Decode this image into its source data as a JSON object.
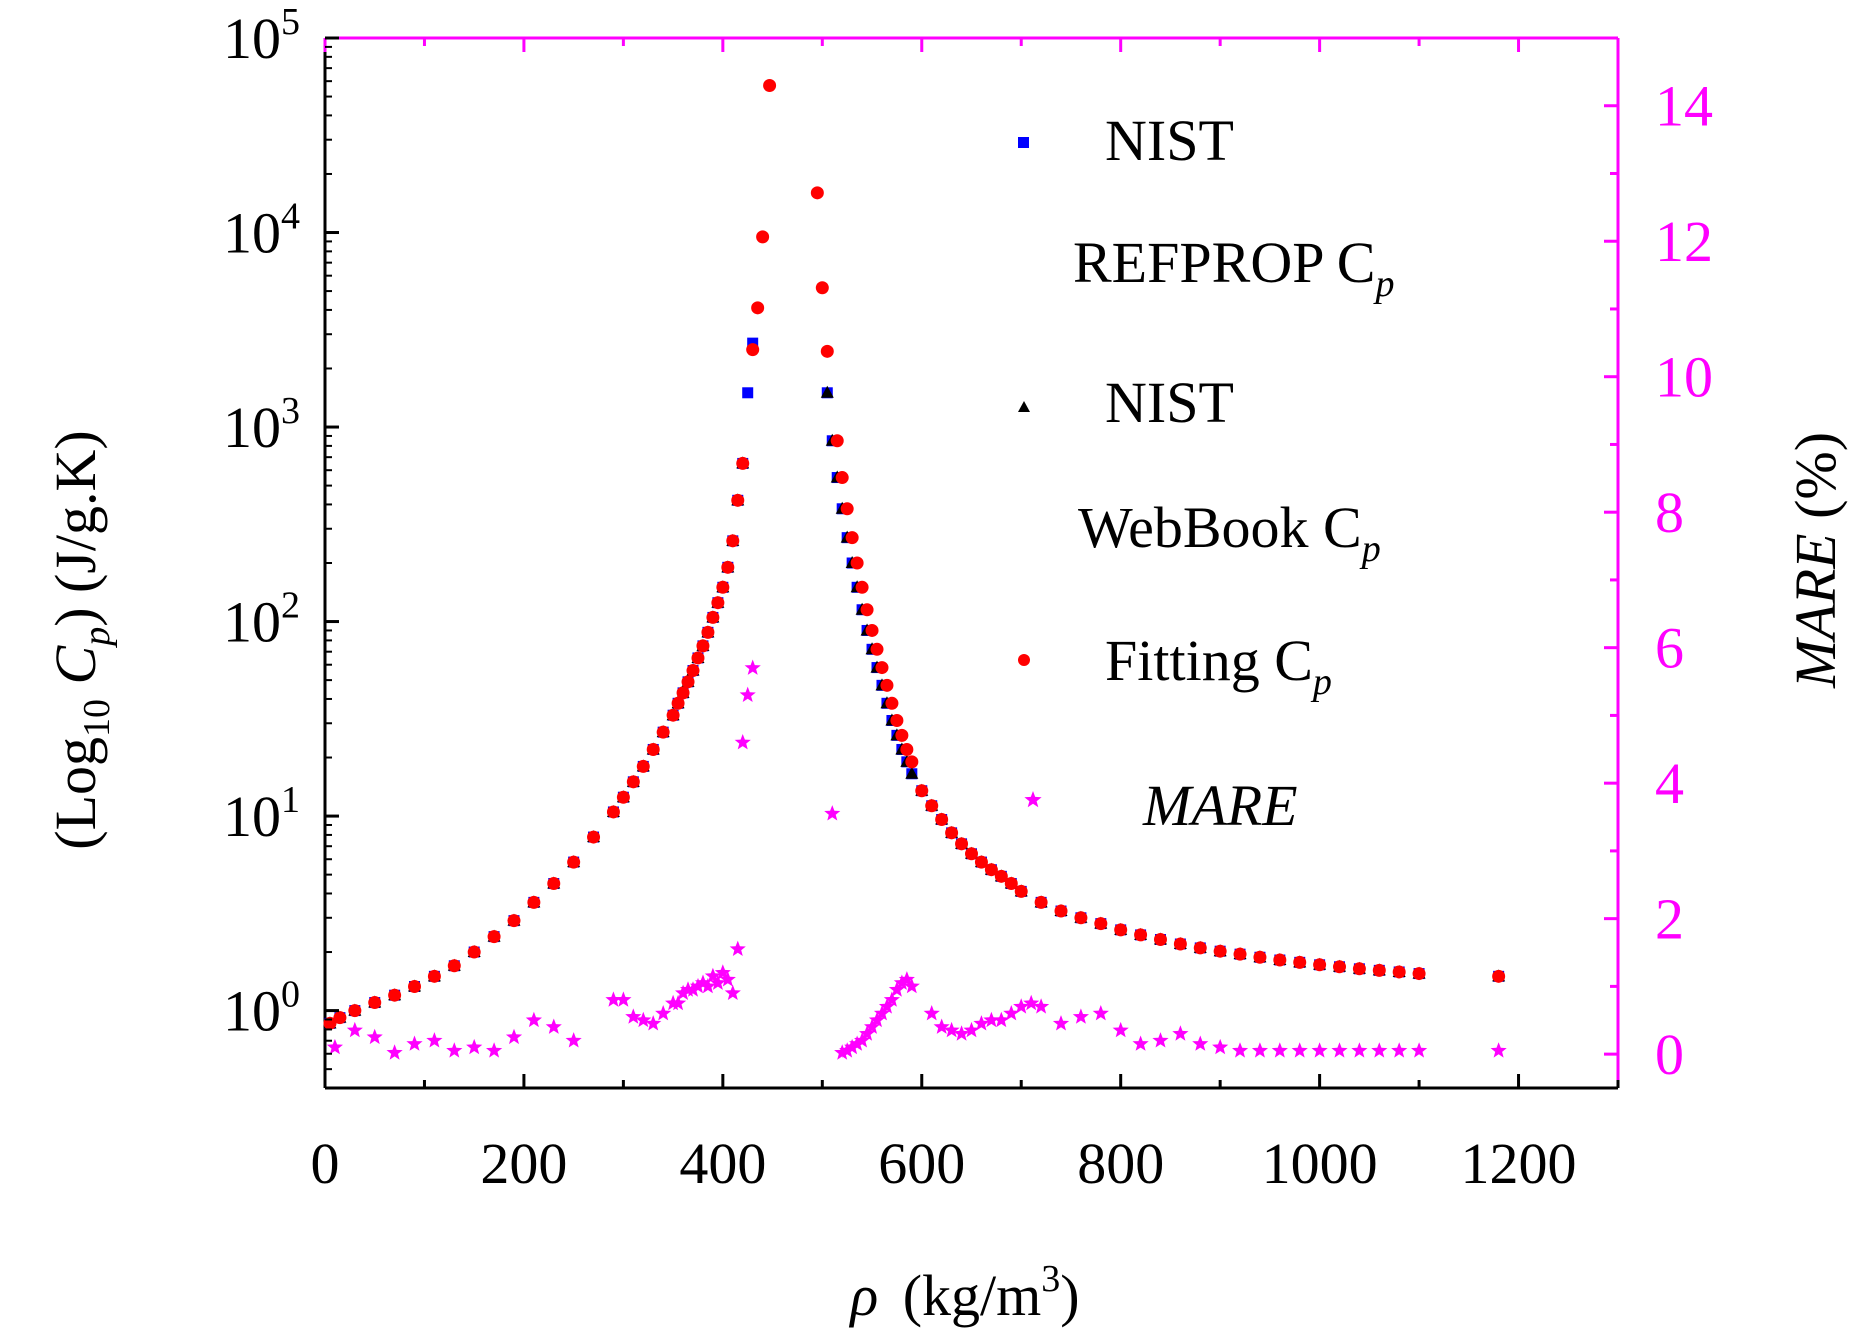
{
  "chart_data": {
    "type": "scatter",
    "x_axis": {
      "label_symbol": "ρ",
      "label_unit": "(kg/m",
      "label_sup": "3",
      "label_close": ")",
      "range": [
        0,
        1300
      ],
      "ticks": [
        0,
        200,
        400,
        600,
        800,
        1000,
        1200
      ],
      "tick_labels": [
        "0",
        "200",
        "400",
        "600",
        "800",
        "1000",
        "1200"
      ]
    },
    "y_left": {
      "label_open": "(Log",
      "label_sub": "10",
      "label_c": " C",
      "label_p": "p",
      "label_rest": ") (J/g.K)",
      "scale": "log",
      "range": [
        0.4,
        100000
      ],
      "tick_base": "10",
      "tick_exponents": [
        "0",
        "1",
        "2",
        "3",
        "4",
        "5"
      ],
      "tick_values": [
        1,
        10,
        100,
        1000,
        10000,
        100000
      ]
    },
    "y_right": {
      "label_italic": "MARE",
      "label_rest": " (%)",
      "range": [
        -0.5,
        15
      ],
      "ticks": [
        0,
        2,
        4,
        6,
        8,
        10,
        12,
        14
      ],
      "tick_labels": [
        "0",
        "2",
        "4",
        "6",
        "8",
        "10",
        "12",
        "14"
      ],
      "color": "#ff00ff"
    },
    "legend": {
      "placement": "top-right",
      "entries": [
        {
          "line1": "NIST",
          "line2": "REFPROP C",
          "sub": "p",
          "marker": "square",
          "color": "#0000ff"
        },
        {
          "line1": "NIST",
          "line2": "WebBook C",
          "sub": "p",
          "marker": "triangle",
          "color": "#000000"
        },
        {
          "line1": "Fitting C",
          "sub": "p",
          "marker": "circle",
          "color": "#ff0000"
        },
        {
          "line1": "MARE",
          "marker": "star",
          "color": "#ff00ff",
          "italic": true
        }
      ]
    },
    "series": [
      {
        "name": "NIST REFPROP Cp",
        "axis": "left",
        "marker": "square",
        "color": "#0000ff",
        "x": [
          5,
          15,
          30,
          50,
          70,
          90,
          110,
          130,
          150,
          170,
          190,
          210,
          230,
          250,
          270,
          290,
          300,
          310,
          320,
          330,
          340,
          350,
          355,
          360,
          365,
          370,
          375,
          380,
          385,
          390,
          395,
          400,
          405,
          410,
          415,
          420,
          425,
          430,
          505,
          510,
          515,
          520,
          525,
          530,
          535,
          540,
          545,
          550,
          555,
          560,
          565,
          570,
          575,
          580,
          585,
          590,
          600,
          610,
          620,
          630,
          640,
          650,
          660,
          670,
          680,
          690,
          700,
          720,
          740,
          760,
          780,
          800,
          820,
          840,
          860,
          880,
          900,
          920,
          940,
          960,
          980,
          1000,
          1020,
          1040,
          1060,
          1080,
          1100,
          1180
        ],
        "y": [
          0.86,
          0.92,
          1.0,
          1.1,
          1.2,
          1.33,
          1.5,
          1.7,
          2.0,
          2.4,
          2.9,
          3.6,
          4.5,
          5.8,
          7.8,
          10.5,
          12.5,
          15,
          18,
          22,
          27,
          33,
          38,
          43,
          49,
          56,
          65,
          75,
          88,
          105,
          125,
          150,
          190,
          260,
          420,
          650,
          1500,
          2700,
          1500,
          850,
          550,
          380,
          270,
          200,
          150,
          115,
          90,
          72,
          58,
          47,
          38,
          31,
          26,
          22,
          19,
          16.5,
          13.5,
          11.3,
          9.6,
          8.2,
          7.2,
          6.4,
          5.8,
          5.3,
          4.9,
          4.5,
          4.1,
          3.6,
          3.25,
          3.0,
          2.8,
          2.6,
          2.45,
          2.32,
          2.2,
          2.1,
          2.02,
          1.95,
          1.88,
          1.82,
          1.77,
          1.72,
          1.68,
          1.64,
          1.61,
          1.58,
          1.55,
          1.5
        ]
      },
      {
        "name": "NIST WebBook Cp",
        "axis": "left",
        "marker": "triangle",
        "color": "#000000",
        "x": [
          5,
          15,
          30,
          50,
          70,
          90,
          110,
          130,
          150,
          170,
          190,
          210,
          230,
          250,
          270,
          290,
          300,
          310,
          320,
          330,
          340,
          350,
          355,
          360,
          365,
          370,
          375,
          380,
          385,
          390,
          395,
          400,
          405,
          410,
          415,
          420,
          505,
          510,
          515,
          520,
          525,
          530,
          535,
          540,
          545,
          550,
          555,
          560,
          565,
          570,
          575,
          580,
          585,
          590,
          600,
          610,
          620,
          630,
          640,
          650,
          660,
          670,
          680,
          690,
          700,
          720,
          740,
          760,
          780,
          800,
          820,
          840,
          860,
          880,
          900,
          920,
          940,
          960,
          980,
          1000,
          1020,
          1040,
          1060,
          1080,
          1100,
          1180
        ],
        "y": [
          0.86,
          0.92,
          1.0,
          1.1,
          1.2,
          1.33,
          1.5,
          1.7,
          2.0,
          2.4,
          2.9,
          3.6,
          4.5,
          5.8,
          7.8,
          10.5,
          12.5,
          15,
          18,
          22,
          27,
          33,
          38,
          43,
          49,
          56,
          65,
          75,
          88,
          105,
          125,
          150,
          190,
          260,
          420,
          650,
          1500,
          850,
          550,
          380,
          270,
          200,
          150,
          115,
          90,
          72,
          58,
          47,
          38,
          31,
          26,
          22,
          19,
          16.5,
          13.5,
          11.3,
          9.6,
          8.2,
          7.2,
          6.4,
          5.8,
          5.3,
          4.9,
          4.5,
          4.1,
          3.6,
          3.25,
          3.0,
          2.8,
          2.6,
          2.45,
          2.32,
          2.2,
          2.1,
          2.02,
          1.95,
          1.88,
          1.82,
          1.77,
          1.72,
          1.68,
          1.64,
          1.61,
          1.58,
          1.55,
          1.5
        ]
      },
      {
        "name": "Fitting Cp",
        "axis": "left",
        "marker": "circle",
        "color": "#ff0000",
        "x": [
          5,
          15,
          30,
          50,
          70,
          90,
          110,
          130,
          150,
          170,
          190,
          210,
          230,
          250,
          270,
          290,
          300,
          310,
          320,
          330,
          340,
          350,
          355,
          360,
          365,
          370,
          375,
          380,
          385,
          390,
          395,
          400,
          405,
          410,
          415,
          420,
          430,
          435,
          440,
          447,
          495,
          500,
          505,
          515,
          520,
          525,
          530,
          535,
          540,
          545,
          550,
          555,
          560,
          565,
          570,
          575,
          580,
          585,
          590,
          600,
          610,
          620,
          630,
          640,
          650,
          660,
          670,
          680,
          690,
          700,
          720,
          740,
          760,
          780,
          800,
          820,
          840,
          860,
          880,
          900,
          920,
          940,
          960,
          980,
          1000,
          1020,
          1040,
          1060,
          1080,
          1100,
          1180
        ],
        "y": [
          0.86,
          0.92,
          1.0,
          1.1,
          1.2,
          1.33,
          1.5,
          1.7,
          2.0,
          2.4,
          2.9,
          3.6,
          4.5,
          5.8,
          7.8,
          10.5,
          12.5,
          15,
          18,
          22,
          27,
          33,
          38,
          43,
          49,
          56,
          65,
          75,
          88,
          105,
          125,
          150,
          190,
          260,
          420,
          650,
          2500,
          4100,
          9500,
          57000,
          16000,
          5200,
          2450,
          850,
          550,
          380,
          270,
          200,
          150,
          115,
          90,
          72,
          58,
          47,
          38,
          31,
          26,
          22,
          19,
          13.5,
          11.3,
          9.6,
          8.2,
          7.2,
          6.4,
          5.8,
          5.3,
          4.9,
          4.5,
          4.1,
          3.6,
          3.25,
          3.0,
          2.8,
          2.6,
          2.45,
          2.32,
          2.2,
          2.1,
          2.02,
          1.95,
          1.88,
          1.82,
          1.77,
          1.72,
          1.68,
          1.64,
          1.61,
          1.58,
          1.55,
          1.5
        ]
      },
      {
        "name": "MARE",
        "axis": "right",
        "marker": "star",
        "color": "#ff00ff",
        "x": [
          10,
          30,
          50,
          70,
          90,
          110,
          130,
          150,
          170,
          190,
          210,
          230,
          250,
          290,
          300,
          310,
          320,
          330,
          340,
          350,
          355,
          360,
          365,
          370,
          375,
          380,
          385,
          390,
          395,
          400,
          405,
          410,
          415,
          420,
          425,
          430,
          510,
          520,
          525,
          530,
          535,
          540,
          545,
          550,
          555,
          560,
          565,
          570,
          575,
          580,
          585,
          590,
          610,
          620,
          630,
          640,
          650,
          660,
          670,
          680,
          690,
          700,
          710,
          720,
          740,
          760,
          780,
          800,
          820,
          840,
          860,
          880,
          900,
          920,
          940,
          960,
          980,
          1000,
          1020,
          1040,
          1060,
          1080,
          1100,
          1180
        ],
        "y": [
          0.1,
          0.35,
          0.25,
          0.02,
          0.15,
          0.2,
          0.05,
          0.1,
          0.05,
          0.25,
          0.5,
          0.4,
          0.2,
          0.8,
          0.8,
          0.55,
          0.5,
          0.45,
          0.6,
          0.75,
          0.75,
          0.9,
          0.95,
          0.95,
          1.0,
          1.05,
          1.0,
          1.15,
          1.05,
          1.2,
          1.1,
          0.9,
          1.55,
          4.6,
          5.3,
          5.7,
          3.55,
          0.02,
          0.05,
          0.1,
          0.15,
          0.2,
          0.3,
          0.4,
          0.5,
          0.6,
          0.7,
          0.8,
          0.95,
          1.05,
          1.1,
          1.0,
          0.6,
          0.4,
          0.35,
          0.3,
          0.35,
          0.45,
          0.5,
          0.5,
          0.6,
          0.7,
          0.75,
          0.7,
          0.45,
          0.55,
          0.6,
          0.35,
          0.15,
          0.2,
          0.3,
          0.15,
          0.1,
          0.05,
          0.05,
          0.05,
          0.05,
          0.05,
          0.05,
          0.05,
          0.05,
          0.05,
          0.05,
          0.05
        ]
      }
    ]
  }
}
